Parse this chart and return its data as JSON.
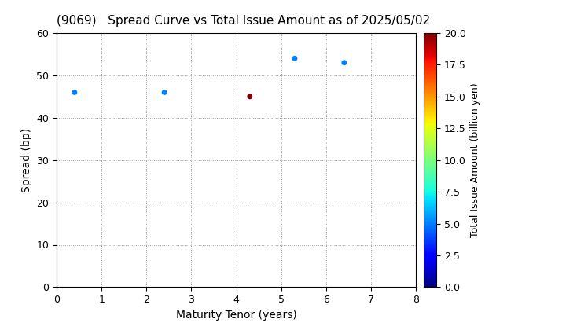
{
  "title": "(9069)   Spread Curve vs Total Issue Amount as of 2025/05/02",
  "xlabel": "Maturity Tenor (years)",
  "ylabel": "Spread (bp)",
  "colorbar_label": "Total Issue Amount (billion yen)",
  "xlim": [
    0,
    8
  ],
  "ylim": [
    0,
    60
  ],
  "xticks": [
    0,
    1,
    2,
    3,
    4,
    5,
    6,
    7,
    8
  ],
  "yticks": [
    0,
    10,
    20,
    30,
    40,
    50,
    60
  ],
  "colorbar_range": [
    0.0,
    20.0
  ],
  "colorbar_ticks": [
    0.0,
    2.5,
    5.0,
    7.5,
    10.0,
    12.5,
    15.0,
    17.5,
    20.0
  ],
  "scatter_x": [
    0.4,
    2.4,
    4.3,
    5.3,
    6.4
  ],
  "scatter_y": [
    46,
    46,
    45,
    54,
    53
  ],
  "scatter_amounts": [
    5.0,
    5.0,
    20.0,
    5.0,
    5.0
  ],
  "cmap": "jet",
  "marker_size": 25,
  "background_color": "#ffffff",
  "grid_color": "#999999",
  "title_fontsize": 11,
  "axis_fontsize": 10,
  "tick_fontsize": 9,
  "colorbar_fontsize": 9
}
